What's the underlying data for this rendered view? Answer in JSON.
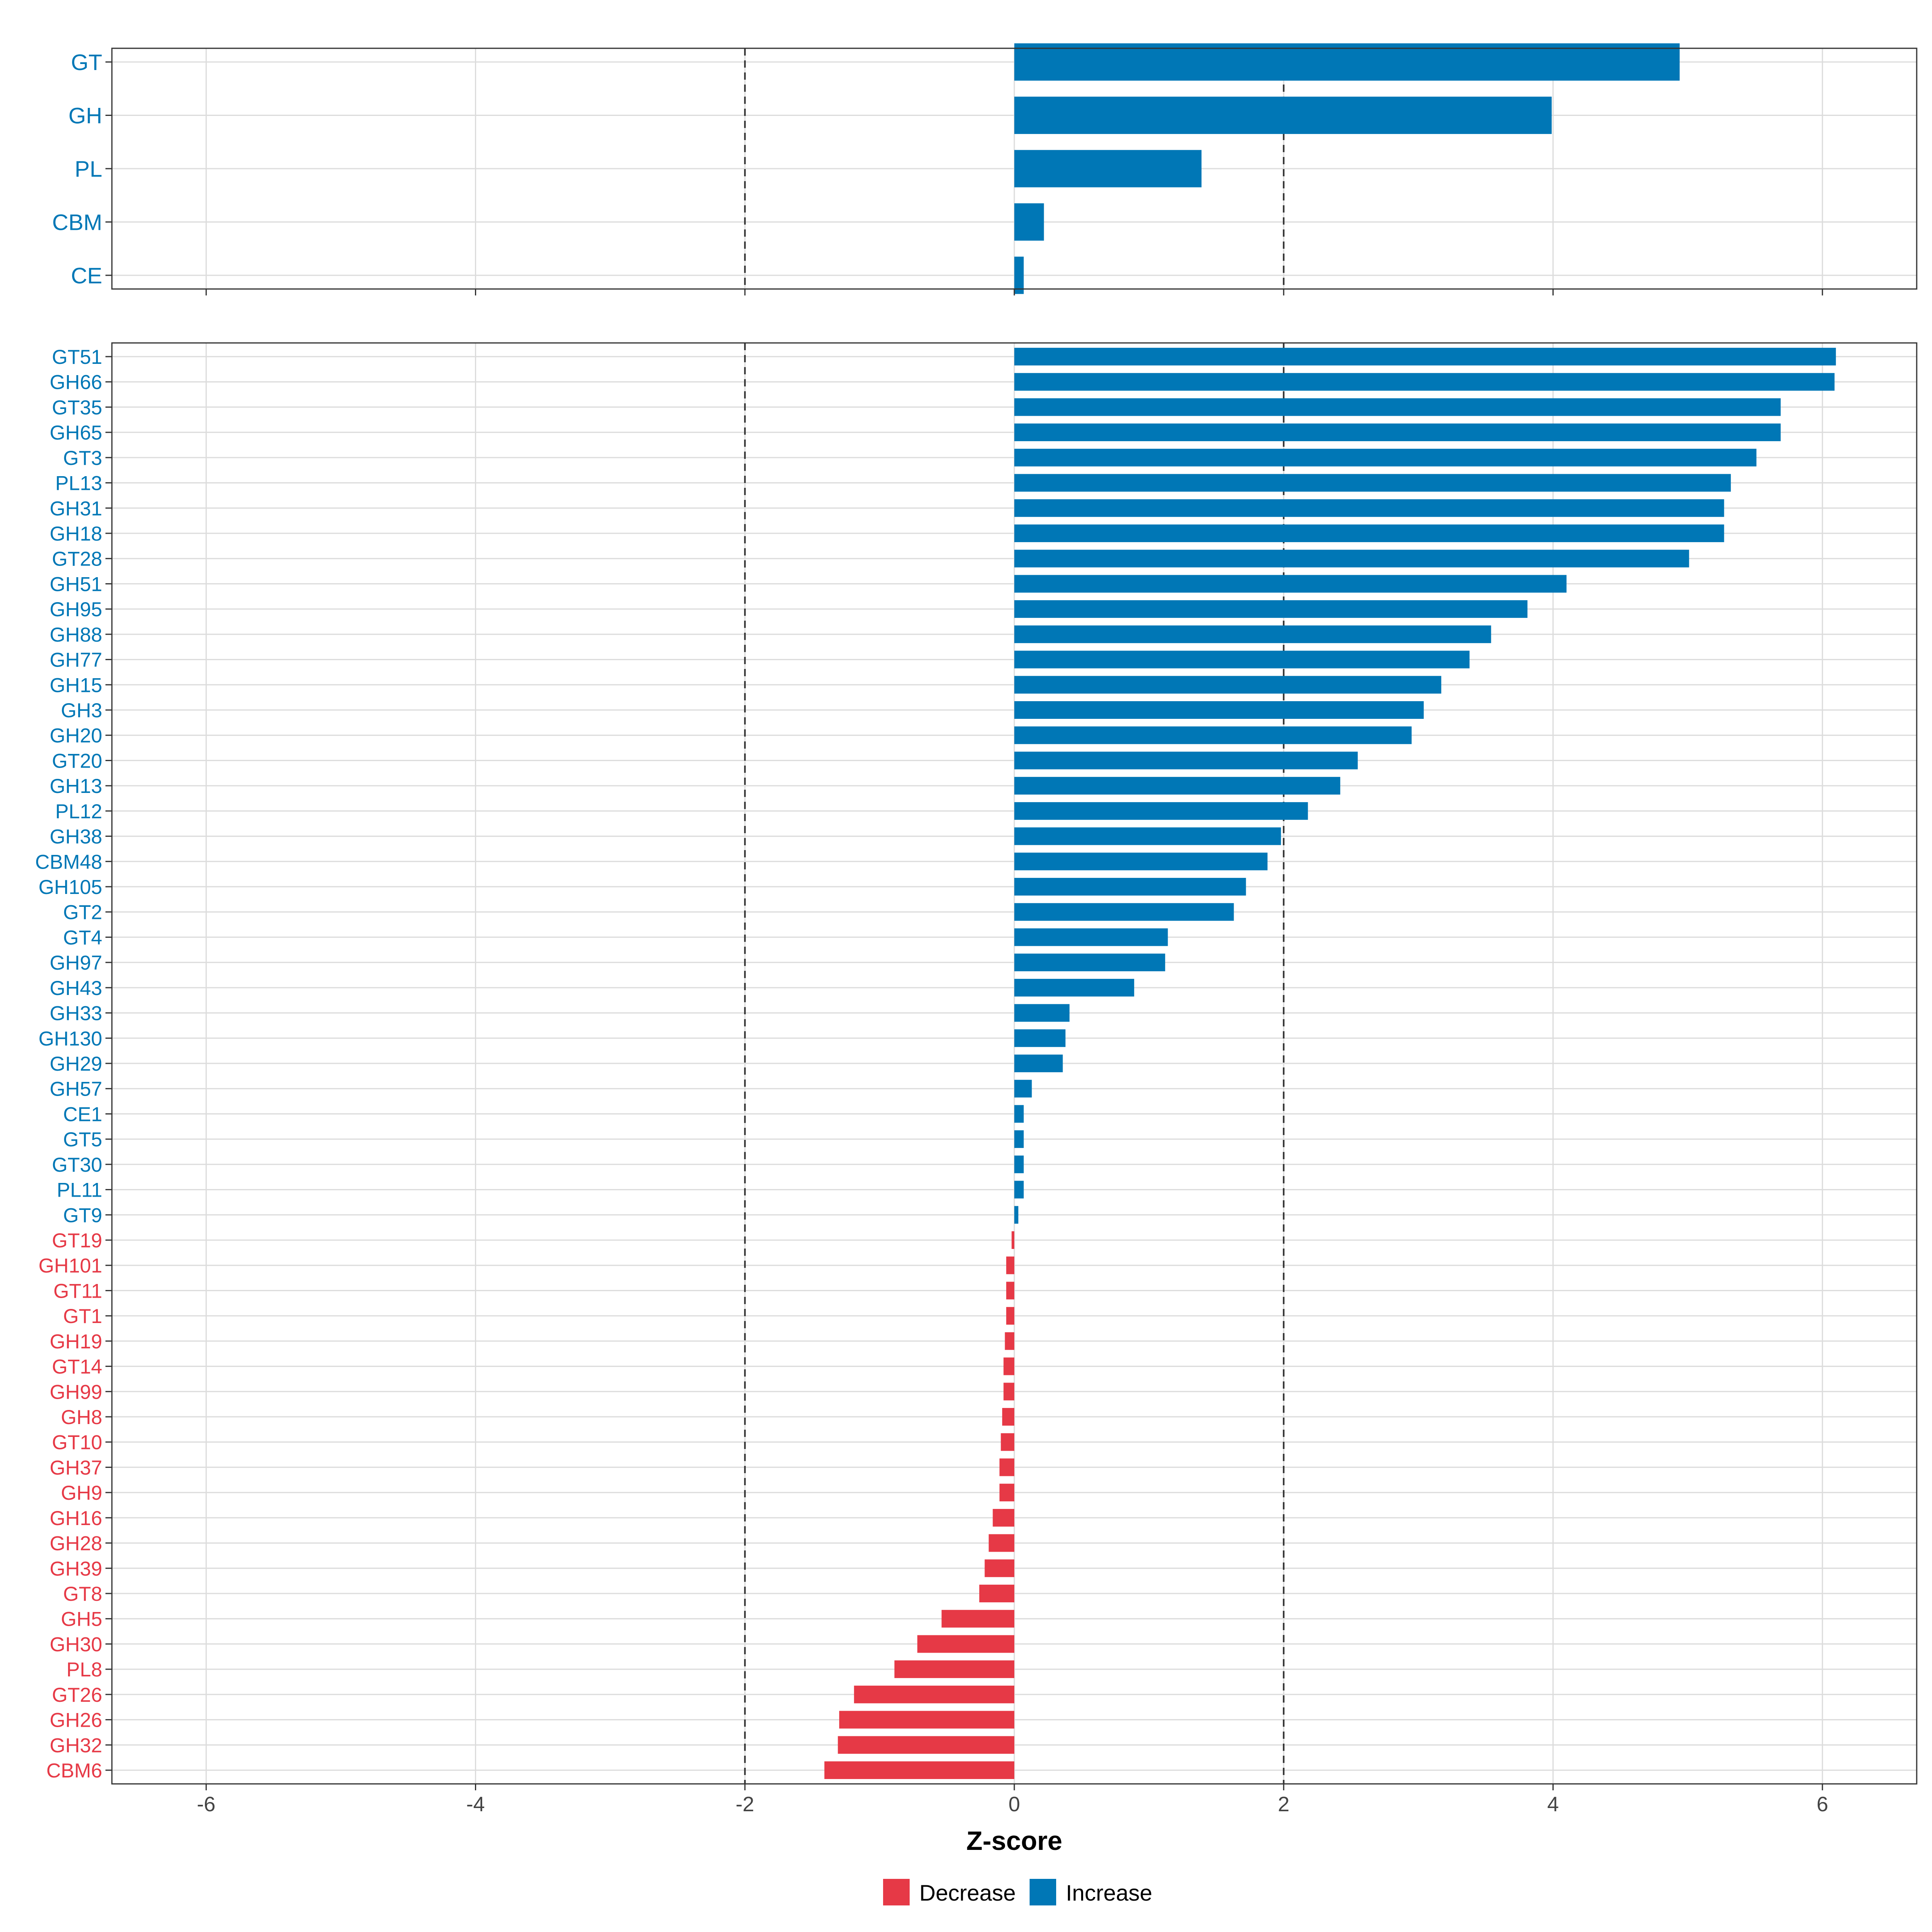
{
  "colors": {
    "increase": "#0077b6",
    "decrease": "#e63946",
    "grid": "#dcdcdc",
    "frame": "#333333",
    "refline": "#333333",
    "tick_text": "#444444"
  },
  "chart_data": [
    {
      "type": "bar",
      "orientation": "horizontal",
      "panel": "top",
      "categories": [
        "GT",
        "GH",
        "PL",
        "CBM",
        "CE"
      ],
      "values": [
        4.94,
        3.99,
        1.39,
        0.22,
        0.07
      ],
      "xlim": [
        -6.7,
        6.7
      ],
      "reference_lines": [
        -2,
        2
      ]
    },
    {
      "type": "bar",
      "orientation": "horizontal",
      "panel": "bottom",
      "categories": [
        "GT51",
        "GH66",
        "GT35",
        "GH65",
        "GT3",
        "PL13",
        "GH31",
        "GH18",
        "GT28",
        "GH51",
        "GH95",
        "GH88",
        "GH77",
        "GH15",
        "GH3",
        "GH20",
        "GT20",
        "GH13",
        "PL12",
        "GH38",
        "CBM48",
        "GH105",
        "GT2",
        "GT4",
        "GH97",
        "GH43",
        "GH33",
        "GH130",
        "GH29",
        "GH57",
        "CE1",
        "GT5",
        "GT30",
        "PL11",
        "GT9",
        "GT19",
        "GH101",
        "GT11",
        "GT1",
        "GH19",
        "GT14",
        "GH99",
        "GH8",
        "GT10",
        "GH37",
        "GH9",
        "GH16",
        "GH28",
        "GH39",
        "GT8",
        "GH5",
        "GH30",
        "PL8",
        "GT26",
        "GH26",
        "GH32",
        "CBM6"
      ],
      "values": [
        6.1,
        6.09,
        5.69,
        5.69,
        5.51,
        5.32,
        5.27,
        5.27,
        5.01,
        4.1,
        3.81,
        3.54,
        3.38,
        3.17,
        3.04,
        2.95,
        2.55,
        2.42,
        2.18,
        1.98,
        1.88,
        1.72,
        1.63,
        1.14,
        1.12,
        0.89,
        0.41,
        0.38,
        0.36,
        0.13,
        0.07,
        0.07,
        0.07,
        0.07,
        0.03,
        -0.02,
        -0.06,
        -0.06,
        -0.06,
        -0.07,
        -0.08,
        -0.08,
        -0.09,
        -0.1,
        -0.11,
        -0.11,
        -0.16,
        -0.19,
        -0.22,
        -0.26,
        -0.54,
        -0.72,
        -0.89,
        -1.19,
        -1.3,
        -1.31,
        -1.41
      ],
      "xlim": [
        -6.7,
        6.7
      ],
      "x_ticks": [
        -6,
        -4,
        -2,
        0,
        2,
        4,
        6
      ],
      "xlabel": "Z-score",
      "reference_lines": [
        -2,
        2
      ]
    }
  ],
  "x_tick_labels": [
    "-6",
    "-4",
    "-2",
    "0",
    "2",
    "4",
    "6"
  ],
  "legend": {
    "position": "bottom",
    "items": [
      {
        "label": "Decrease",
        "color": "#e63946"
      },
      {
        "label": "Increase",
        "color": "#0077b6"
      }
    ]
  }
}
